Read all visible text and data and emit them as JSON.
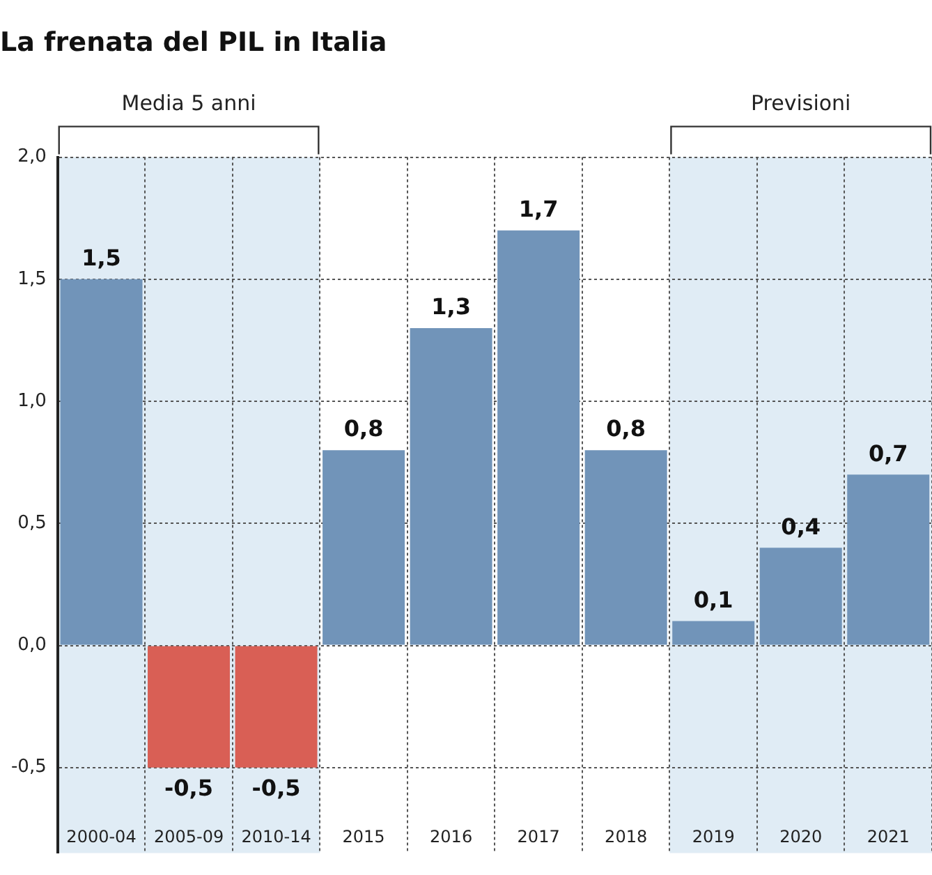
{
  "chart_data": {
    "type": "bar",
    "title": "La frenata del PIL in Italia",
    "categories": [
      "2000-04",
      "2005-09",
      "2010-14",
      "2015",
      "2016",
      "2017",
      "2018",
      "2019",
      "2020",
      "2021"
    ],
    "values": [
      1.5,
      -0.5,
      -0.5,
      0.8,
      1.3,
      1.7,
      0.8,
      0.1,
      0.4,
      0.7
    ],
    "colors": [
      "#7194b9",
      "#d95f55",
      "#d95f55",
      "#7194b9",
      "#7194b9",
      "#7194b9",
      "#7194b9",
      "#7194b9",
      "#7194b9",
      "#7194b9"
    ],
    "ylim": [
      -0.85,
      2
    ],
    "yticks": [
      {
        "value": -0.5,
        "label": "-0,5"
      },
      {
        "value": 0,
        "label": "0,0"
      },
      {
        "value": 0.5,
        "label": "0,5"
      },
      {
        "value": 1,
        "label": "1,0"
      },
      {
        "value": 1.5,
        "label": "1,5"
      },
      {
        "value": 2,
        "label": "2,0"
      }
    ],
    "value_labels": [
      "1,5",
      "-0,5",
      "-0,5",
      "0,8",
      "1,3",
      "1,7",
      "0,8",
      "0,1",
      "0,4",
      "0,7"
    ],
    "bands": [
      {
        "axis": "x",
        "from": "2000-04",
        "to": "2010-14",
        "label": "Media 5 anni",
        "color": "#e0ecf5"
      },
      {
        "axis": "x",
        "from": "2019",
        "to": "2021",
        "label": "Previsioni",
        "color": "#e0ecf5"
      }
    ],
    "grid": true,
    "legend": false
  }
}
